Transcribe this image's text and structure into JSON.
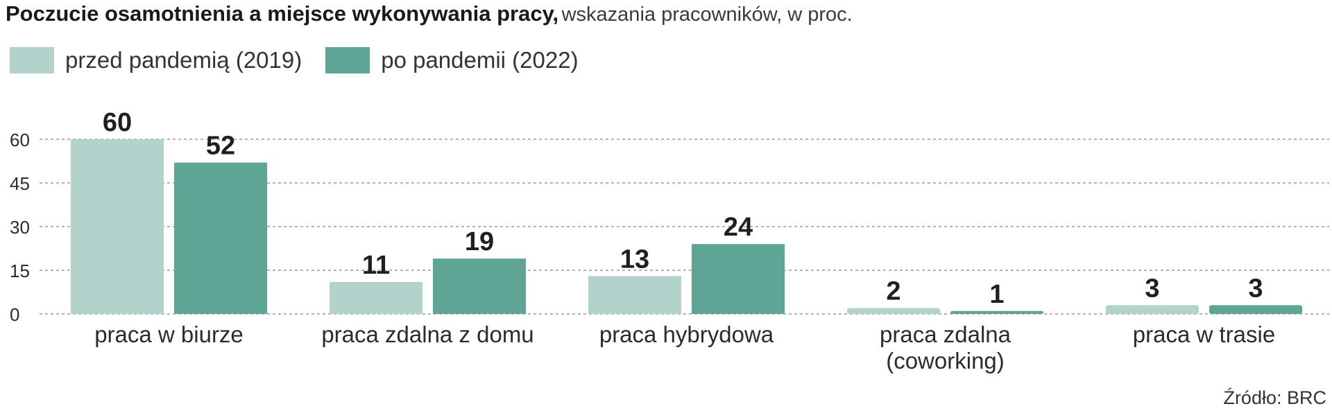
{
  "header": {
    "title": "Poczucie osamotnienia a miejsce wykonywania pracy,",
    "subtitle": "wskazania pracowników, w proc."
  },
  "source": "Źródło: BRC",
  "colors": {
    "series_1": "#b2d3cb",
    "series_2": "#5fa596",
    "grid": "#9a9a9a",
    "text": "#2b2b2b"
  },
  "chart_data": {
    "type": "bar",
    "title": "Poczucie osamotnienia a miejsce wykonywania pracy, wskazania pracowników, w proc.",
    "categories": [
      [
        "praca w biurze"
      ],
      [
        "praca zdalna z domu"
      ],
      [
        "praca hybrydowa"
      ],
      [
        "praca zdalna",
        "(coworking)"
      ],
      [
        "praca w trasie"
      ]
    ],
    "series": [
      {
        "name": "przed pandemią (2019)",
        "values": [
          60,
          11,
          13,
          2,
          3
        ]
      },
      {
        "name": "po pandemii (2022)",
        "values": [
          52,
          19,
          24,
          1,
          3
        ]
      }
    ],
    "yticks": [
      0,
      15,
      30,
      45,
      60
    ],
    "ylim": [
      0,
      60
    ],
    "grid": true,
    "legend_position": "top-left",
    "data_labels": true
  }
}
